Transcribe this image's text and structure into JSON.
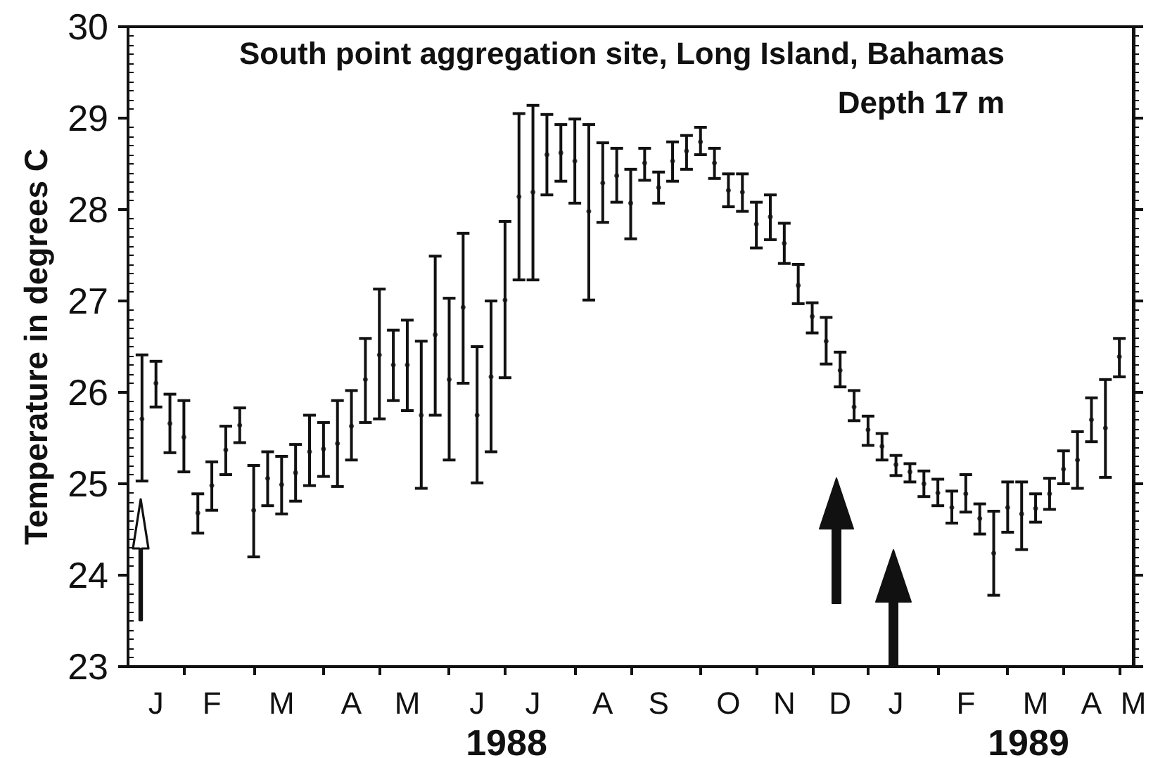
{
  "chart_data": {
    "type": "scatter",
    "title": "South point aggregation site, Long Island, Bahamas",
    "subtitle": "Depth 17 m",
    "ylabel": "Temperature in degrees C",
    "annotations": [
      "1988",
      "1989"
    ],
    "categories": [
      null,
      null,
      "J",
      null,
      null,
      null,
      "F",
      null,
      null,
      null,
      null,
      "M",
      null,
      null,
      null,
      null,
      "A",
      null,
      null,
      null,
      "M",
      null,
      null,
      null,
      null,
      "J",
      null,
      null,
      null,
      "J",
      null,
      null,
      null,
      null,
      "A",
      null,
      null,
      null,
      "S",
      null,
      null,
      null,
      null,
      "O",
      null,
      null,
      null,
      "N",
      null,
      null,
      null,
      "D",
      null,
      null,
      null,
      "J",
      null,
      null,
      null,
      null,
      "F",
      null,
      null,
      null,
      null,
      "M",
      null,
      null,
      null,
      "A",
      null,
      null,
      "M"
    ],
    "series": [
      {
        "color": "#111111",
        "values": [
          null,
          25.71,
          26.1,
          25.66,
          25.51,
          24.68,
          24.98,
          25.37,
          25.64,
          24.71,
          25.06,
          24.99,
          25.12,
          25.35,
          25.38,
          25.44,
          25.63,
          26.14,
          26.41,
          26.3,
          26.3,
          25.75,
          26.63,
          26.14,
          26.93,
          25.75,
          26.17,
          27.01,
          28.14,
          28.19,
          28.6,
          28.62,
          28.53,
          27.98,
          28.29,
          28.37,
          28.07,
          28.51,
          28.24,
          28.53,
          28.64,
          28.74,
          28.51,
          28.21,
          28.19,
          27.84,
          27.92,
          27.63,
          27.17,
          26.83,
          26.56,
          26.24,
          25.84,
          25.59,
          25.41,
          25.21,
          25.13,
          25.0,
          24.9,
          24.74,
          24.89,
          24.62,
          24.24,
          24.74,
          24.67,
          24.73,
          24.89,
          25.16,
          25.26,
          25.7,
          25.61,
          26.39,
          null
        ],
        "errors": [
          null,
          [
            25.03,
            26.41
          ],
          [
            25.84,
            26.34
          ],
          [
            25.34,
            25.98
          ],
          [
            25.13,
            25.91
          ],
          [
            24.46,
            24.89
          ],
          [
            24.71,
            25.24
          ],
          [
            25.1,
            25.63
          ],
          [
            25.45,
            25.83
          ],
          [
            24.2,
            25.2
          ],
          [
            24.76,
            25.35
          ],
          [
            24.67,
            25.3
          ],
          [
            24.81,
            25.43
          ],
          [
            24.98,
            25.75
          ],
          [
            25.08,
            25.67
          ],
          [
            24.97,
            25.91
          ],
          [
            25.26,
            26.02
          ],
          [
            25.67,
            26.59
          ],
          [
            25.71,
            27.13
          ],
          [
            25.91,
            26.68
          ],
          [
            25.8,
            26.79
          ],
          [
            24.95,
            26.56
          ],
          [
            25.75,
            27.49
          ],
          [
            25.26,
            27.03
          ],
          [
            26.1,
            27.74
          ],
          [
            25.01,
            26.5
          ],
          [
            25.35,
            27.0
          ],
          [
            26.16,
            27.87
          ],
          [
            27.23,
            29.05
          ],
          [
            27.23,
            29.14
          ],
          [
            28.16,
            29.04
          ],
          [
            28.31,
            28.93
          ],
          [
            28.07,
            28.99
          ],
          [
            27.01,
            28.93
          ],
          [
            27.86,
            28.73
          ],
          [
            28.08,
            28.67
          ],
          [
            27.68,
            28.44
          ],
          [
            28.32,
            28.67
          ],
          [
            28.07,
            28.41
          ],
          [
            28.31,
            28.74
          ],
          [
            28.44,
            28.81
          ],
          [
            28.6,
            28.9
          ],
          [
            28.34,
            28.67
          ],
          [
            28.03,
            28.39
          ],
          [
            27.98,
            28.39
          ],
          [
            27.58,
            28.08
          ],
          [
            27.67,
            28.16
          ],
          [
            27.41,
            27.85
          ],
          [
            26.97,
            27.4
          ],
          [
            26.65,
            26.98
          ],
          [
            26.31,
            26.82
          ],
          [
            26.06,
            26.44
          ],
          [
            25.69,
            26.02
          ],
          [
            25.42,
            25.74
          ],
          [
            25.26,
            25.55
          ],
          [
            25.09,
            25.31
          ],
          [
            25.02,
            25.22
          ],
          [
            24.86,
            25.14
          ],
          [
            24.76,
            25.05
          ],
          [
            24.57,
            24.92
          ],
          [
            24.69,
            25.1
          ],
          [
            24.45,
            24.78
          ],
          [
            23.78,
            24.7
          ],
          [
            24.47,
            25.02
          ],
          [
            24.28,
            25.02
          ],
          [
            24.58,
            24.89
          ],
          [
            24.72,
            25.06
          ],
          [
            25.0,
            25.36
          ],
          [
            24.95,
            25.57
          ],
          [
            25.46,
            25.94
          ],
          [
            25.07,
            26.14
          ],
          [
            26.17,
            26.59
          ],
          null
        ]
      }
    ],
    "ylim": [
      23,
      30
    ],
    "yticks": [
      23,
      24,
      25,
      26,
      27,
      28,
      29,
      30
    ],
    "marker": "circle"
  }
}
